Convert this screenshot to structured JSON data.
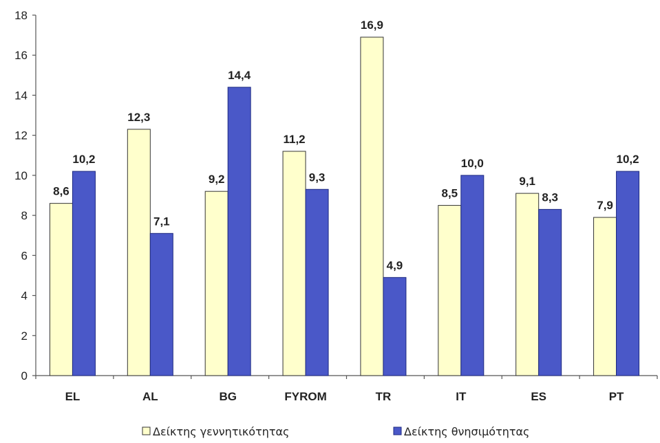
{
  "chart_data": {
    "type": "bar",
    "categories": [
      "EL",
      "AL",
      "BG",
      "FYROM",
      "TR",
      "IT",
      "ES",
      "PT"
    ],
    "series": [
      {
        "name": "Δείκτης γεννητικότητας",
        "values": [
          8.6,
          12.3,
          9.2,
          11.2,
          16.9,
          8.5,
          9.1,
          7.9
        ],
        "labels": [
          "8,6",
          "12,3",
          "9,2",
          "11,2",
          "16,9",
          "8,5",
          "9,1",
          "7,9"
        ],
        "color": "#FFFFCC",
        "stroke": "#333333"
      },
      {
        "name": "Δείκτης θνησιμότητας",
        "values": [
          10.2,
          7.1,
          14.4,
          9.3,
          4.9,
          10.0,
          8.3,
          10.2
        ],
        "labels": [
          "10,2",
          "7,1",
          "14,4",
          "9,3",
          "4,9",
          "10,0",
          "8,3",
          "10,2"
        ],
        "color": "#4A58C8",
        "stroke": "#1E2A80"
      }
    ],
    "title": "",
    "xlabel": "",
    "ylabel": "",
    "ylim": [
      0,
      18
    ],
    "yticks": [
      "0",
      "2",
      "4",
      "6",
      "8",
      "10",
      "12",
      "14",
      "16",
      "18"
    ],
    "grid": false,
    "legend_position": "bottom"
  }
}
